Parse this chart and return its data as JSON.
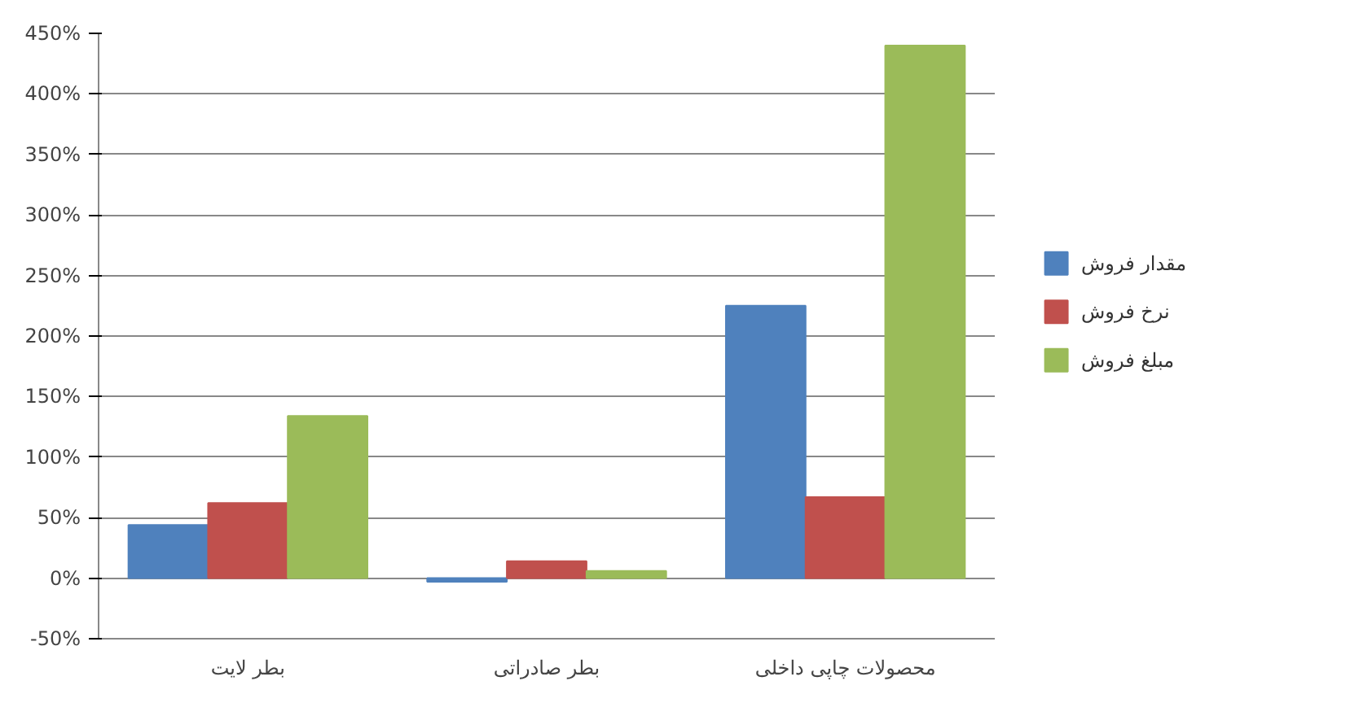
{
  "chart_data": {
    "type": "bar",
    "categories": [
      "بطر لایت",
      "بطر صادراتی",
      "محصولات چاپی داخلی"
    ],
    "series": [
      {
        "name": "مقدار فروش",
        "color": "#4f81bd",
        "values": [
          44,
          -3,
          225
        ]
      },
      {
        "name": "نرخ فروش",
        "color": "#c0504d",
        "values": [
          62,
          14,
          67
        ]
      },
      {
        "name": "مبلغ فروش",
        "color": "#9bbb59",
        "values": [
          134,
          6,
          440
        ]
      }
    ],
    "ylim": [
      -50,
      450
    ],
    "yticks": [
      {
        "value": -50,
        "label": "-50%"
      },
      {
        "value": 0,
        "label": "0%"
      },
      {
        "value": 50,
        "label": "50%"
      },
      {
        "value": 100,
        "label": "100%"
      },
      {
        "value": 150,
        "label": "150%"
      },
      {
        "value": 200,
        "label": "200%"
      },
      {
        "value": 250,
        "label": "250%"
      },
      {
        "value": 300,
        "label": "300%"
      },
      {
        "value": 350,
        "label": "350%"
      },
      {
        "value": 400,
        "label": "400%"
      },
      {
        "value": 450,
        "label": "450%"
      }
    ],
    "grid": "y",
    "legend": "right"
  }
}
